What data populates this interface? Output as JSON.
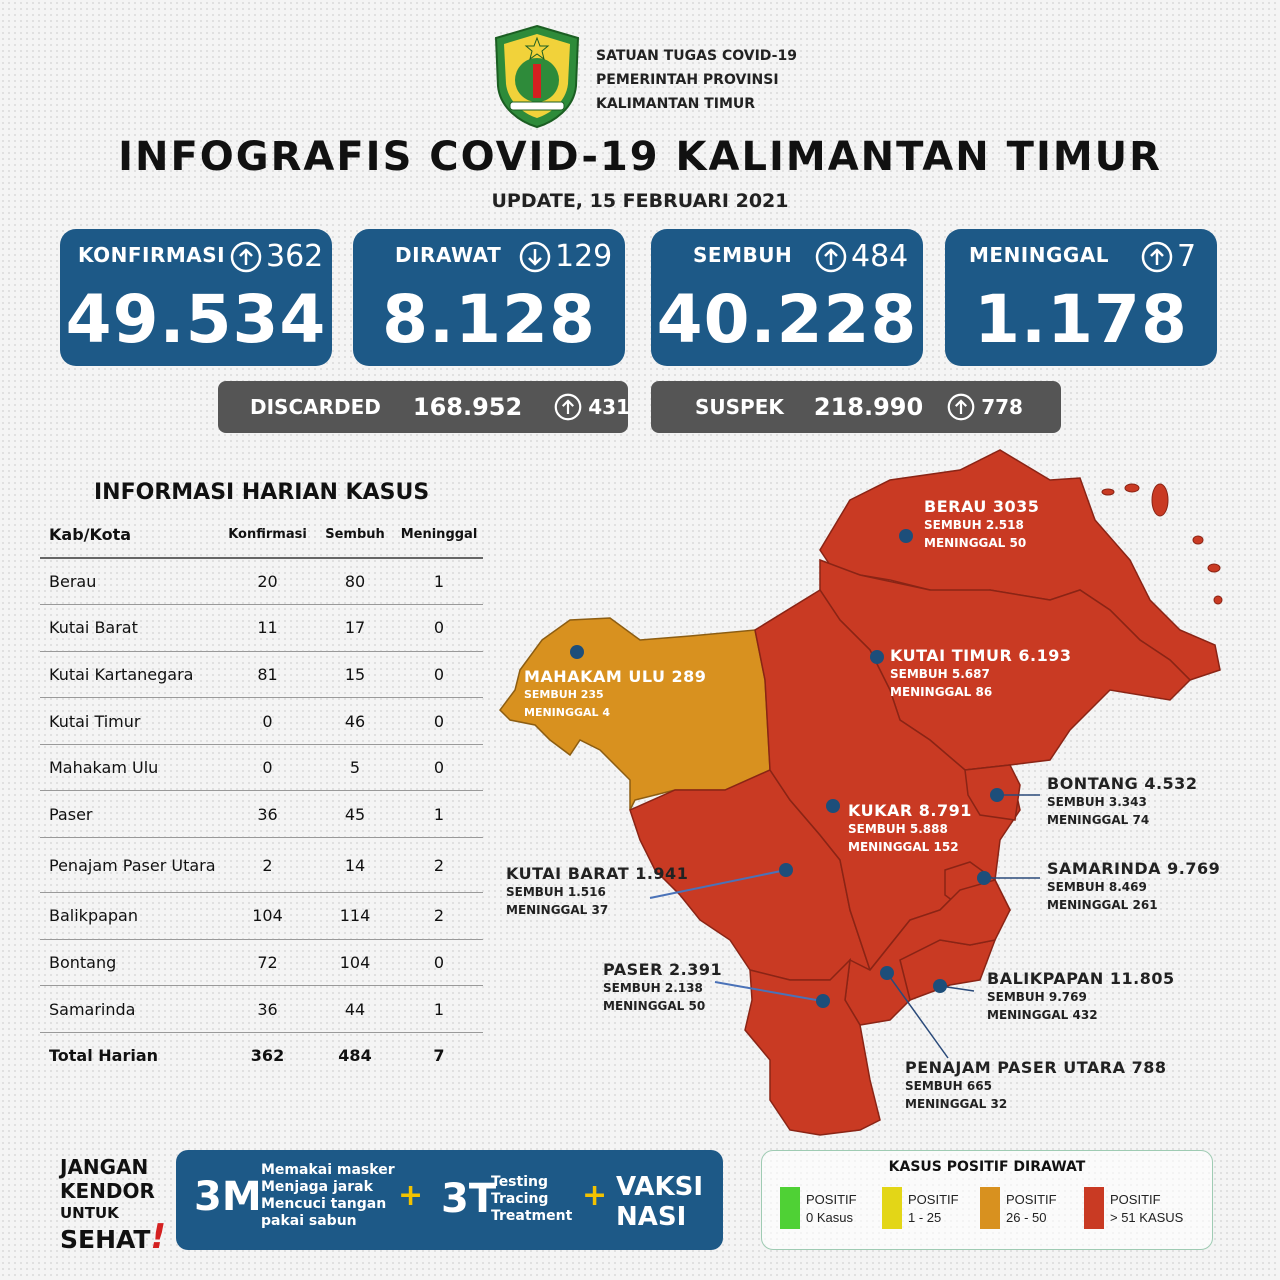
{
  "header": {
    "org_lines": [
      "SATUAN TUGAS COVID-19",
      "PEMERINTAH PROVINSI",
      "KALIMANTAN TIMUR"
    ],
    "title": "INFOGRAFIS COVID-19 KALIMANTAN TIMUR",
    "update": "UPDATE, 15 FEBRUARI 2021"
  },
  "stats": [
    {
      "label": "KONFIRMASI",
      "direction": "up",
      "change": "362",
      "value": "49.534"
    },
    {
      "label": "DIRAWAT",
      "direction": "down",
      "change": "129",
      "value": "8.128"
    },
    {
      "label": "SEMBUH",
      "direction": "up",
      "change": "484",
      "value": "40.228"
    },
    {
      "label": "MENINGGAL",
      "direction": "up",
      "change": "7",
      "value": "1.178"
    }
  ],
  "secondary": [
    {
      "label": "DISCARDED",
      "value": "168.952",
      "change": "431"
    },
    {
      "label": "SUSPEK",
      "value": "218.990",
      "change": "778"
    }
  ],
  "table": {
    "title": "INFORMASI HARIAN KASUS",
    "headers": [
      "Kab/Kota",
      "Konfirmasi",
      "Sembuh",
      "Meninggal"
    ],
    "rows": [
      [
        "Berau",
        "20",
        "80",
        "1"
      ],
      [
        "Kutai Barat",
        "11",
        "17",
        "0"
      ],
      [
        "Kutai Kartanegara",
        "81",
        "15",
        "0"
      ],
      [
        "Kutai Timur",
        "0",
        "46",
        "0"
      ],
      [
        "Mahakam Ulu",
        "0",
        "5",
        "0"
      ],
      [
        "Paser",
        "36",
        "45",
        "1"
      ],
      [
        "Penajam Paser Utara",
        "2",
        "14",
        "2"
      ],
      [
        "Balikpapan",
        "104",
        "114",
        "2"
      ],
      [
        "Bontang",
        "72",
        "104",
        "0"
      ],
      [
        "Samarinda",
        "36",
        "44",
        "1"
      ]
    ],
    "total": [
      "Total Harian",
      "362",
      "484",
      "7"
    ]
  },
  "map": {
    "colors": {
      "red": "#c93a23",
      "orange": "#d8911f",
      "dot": "#1d4e7a"
    },
    "regions": [
      {
        "name": "BERAU  3035",
        "sembuh": "SEMBUH 2.518",
        "meninggal": "MENINGGAL 50",
        "status": "red"
      },
      {
        "name": "KUTAI TIMUR 6.193",
        "sembuh": "SEMBUH 5.687",
        "meninggal": "MENINGGAL 86",
        "status": "red"
      },
      {
        "name": "MAHAKAM ULU  289",
        "sembuh": "SEMBUH 235",
        "meninggal": "MENINGGAL 4",
        "status": "orange"
      },
      {
        "name": "KUKAR 8.791",
        "sembuh": "SEMBUH 5.888",
        "meninggal": "MENINGGAL 152",
        "status": "red"
      },
      {
        "name": "BONTANG  4.532",
        "sembuh": "SEMBUH 3.343",
        "meninggal": "MENINGGAL 74",
        "status": "red"
      },
      {
        "name": "SAMARINDA  9.769",
        "sembuh": "SEMBUH 8.469",
        "meninggal": "MENINGGAL 261",
        "status": "red"
      },
      {
        "name": "KUTAI BARAT 1.941",
        "sembuh": "SEMBUH 1.516",
        "meninggal": "MENINGGAL 37",
        "status": "red"
      },
      {
        "name": "PASER  2.391",
        "sembuh": "SEMBUH 2.138",
        "meninggal": "MENINGGAL 50",
        "status": "red"
      },
      {
        "name": "BALIKPAPAN  11.805",
        "sembuh": "SEMBUH  9.769",
        "meninggal": "MENINGGAL 432",
        "status": "red"
      },
      {
        "name": "PENAJAM PASER UTARA 788",
        "sembuh": "SEMBUH 665",
        "meninggal": "MENINGGAL 32",
        "status": "red"
      }
    ]
  },
  "slogan": {
    "line1": "JANGAN",
    "line2": "KENDOR",
    "line3": "UNTUK",
    "line4": "SEHAT",
    "mark": "!"
  },
  "protocol": {
    "m3": "3M",
    "m3_items": [
      "Memakai masker",
      "Menjaga jarak",
      "Mencuci tangan",
      "pakai sabun"
    ],
    "plus": "+",
    "t3": "3T",
    "t3_items": [
      "Testing",
      "Tracing",
      "Treatment"
    ],
    "vaksi": [
      "VAKSI",
      "NASI"
    ]
  },
  "legend": {
    "title": "KASUS POSITIF DIRAWAT",
    "items": [
      {
        "line1": "POSITIF",
        "line2": "0 Kasus",
        "color": "#4fd135"
      },
      {
        "line1": "POSITIF",
        "line2": "1 - 25",
        "color": "#e3d617"
      },
      {
        "line1": "POSITIF",
        "line2": "26 - 50",
        "color": "#d8911f"
      },
      {
        "line1": "POSITIF",
        "line2": "> 51 KASUS",
        "color": "#c93a23"
      }
    ]
  }
}
